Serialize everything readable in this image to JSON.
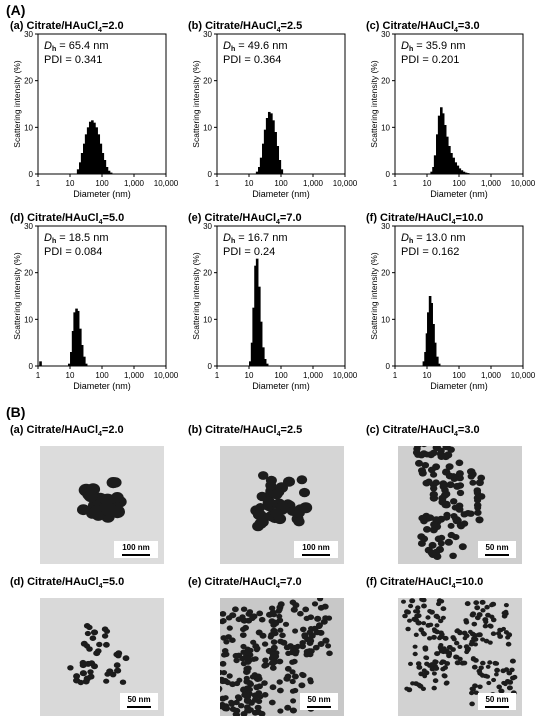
{
  "section_a": "(A)",
  "section_b": "(B)",
  "colors": {
    "bar": "#000000",
    "frame": "#000000",
    "tem_bg": "#d8d8d8",
    "tem_particle": "#1c1c1c"
  },
  "chart_data": [
    {
      "type": "bar",
      "title_prefix": "(a) Citrate/HAuCl",
      "title_sub": "4",
      "title_suffix": "=2.0",
      "dh_label": "D",
      "dh_sub": "h",
      "dh_text": " = 65.4 nm",
      "pdi_text": "PDI = 0.341",
      "xlabel": "Diameter (nm)",
      "ylabel": "Scattering intensity (%)",
      "xscale": "log",
      "xlim": [
        1,
        10000
      ],
      "ylim": [
        0,
        30
      ],
      "xticks": [
        "1",
        "10",
        "100",
        "1,000",
        "10,000"
      ],
      "yticks": [
        "0",
        "10",
        "20",
        "30"
      ],
      "x": [
        18,
        21,
        24,
        28,
        32,
        37,
        43,
        50,
        58,
        68,
        79,
        92,
        106,
        123,
        143,
        166,
        193
      ],
      "values": [
        1.0,
        2.5,
        4.5,
        6.5,
        8.5,
        10.0,
        11.2,
        11.5,
        11.0,
        10.0,
        8.5,
        6.5,
        4.5,
        3.0,
        1.5,
        0.7,
        0.3
      ]
    },
    {
      "type": "bar",
      "title_prefix": "(b) Citrate/HAuCl",
      "title_sub": "4",
      "title_suffix": "=2.5",
      "dh_label": "D",
      "dh_sub": "h",
      "dh_text": " = 49.6 nm",
      "pdi_text": "PDI = 0.364",
      "xlabel": "Diameter (nm)",
      "ylabel": "Scattering intensity (%)",
      "xscale": "log",
      "xlim": [
        1,
        10000
      ],
      "ylim": [
        0,
        30
      ],
      "xticks": [
        "1",
        "10",
        "100",
        "1,000",
        "10,000"
      ],
      "yticks": [
        "0",
        "10",
        "20",
        "30"
      ],
      "x": [
        18,
        21,
        24,
        28,
        32,
        37,
        43,
        50,
        58,
        68,
        79,
        92,
        106
      ],
      "values": [
        0.5,
        1.5,
        3.5,
        6.5,
        9.5,
        12.0,
        13.3,
        13.0,
        11.5,
        9.0,
        6.0,
        3.0,
        1.0
      ]
    },
    {
      "type": "bar",
      "title_prefix": "(c) Citrate/HAuCl",
      "title_sub": "4",
      "title_suffix": "=3.0",
      "dh_label": "D",
      "dh_sub": "h",
      "dh_text": " = 35.9 nm",
      "pdi_text": "PDI = 0.201",
      "xlabel": "Diameter (nm)",
      "ylabel": "Scattering intensity (%)",
      "xscale": "log",
      "xlim": [
        1,
        10000
      ],
      "ylim": [
        0,
        30
      ],
      "xticks": [
        "1",
        "10",
        "100",
        "1,000",
        "10,000"
      ],
      "yticks": [
        "0",
        "10",
        "20",
        "30"
      ],
      "x": [
        14,
        16,
        18,
        21,
        24,
        28,
        32,
        37,
        43,
        50,
        58,
        68,
        79,
        92,
        106,
        123,
        143,
        166,
        193,
        230
      ],
      "values": [
        0.5,
        1.5,
        4.0,
        8.5,
        12.5,
        14.3,
        13.0,
        10.5,
        8.0,
        6.0,
        4.5,
        3.5,
        2.5,
        1.8,
        1.2,
        0.8,
        0.5,
        0.3,
        0.2,
        0.1
      ]
    },
    {
      "type": "bar",
      "title_prefix": "(d) Citrate/HAuCl",
      "title_sub": "4",
      "title_suffix": "=5.0",
      "dh_label": "D",
      "dh_sub": "h",
      "dh_text": " = 18.5 nm",
      "pdi_text": "PDI = 0.084",
      "xlabel": "Diameter (nm)",
      "ylabel": "Scattering intensity (%)",
      "xscale": "log",
      "xlim": [
        1,
        10000
      ],
      "ylim": [
        0,
        30
      ],
      "xticks": [
        "1",
        "10",
        "100",
        "1,000",
        "10,000"
      ],
      "yticks": [
        "0",
        "10",
        "20",
        "30"
      ],
      "x": [
        1.2,
        9.5,
        11,
        12.5,
        14,
        16,
        18,
        21,
        24,
        28,
        32
      ],
      "values": [
        1.0,
        0.5,
        3.0,
        7.5,
        11.5,
        12.3,
        11.8,
        8.0,
        4.5,
        2.0,
        0.5
      ]
    },
    {
      "type": "bar",
      "title_prefix": "(e) Citrate/HAuCl",
      "title_sub": "4",
      "title_suffix": "=7.0",
      "dh_label": "D",
      "dh_sub": "h",
      "dh_text": " = 16.7 nm",
      "pdi_text": "PDI = 0.24",
      "xlabel": "Diameter (nm)",
      "ylabel": "Scattering intensity (%)",
      "xscale": "log",
      "xlim": [
        1,
        10000
      ],
      "ylim": [
        0,
        30
      ],
      "xticks": [
        "1",
        "10",
        "100",
        "1,000",
        "10,000"
      ],
      "yticks": [
        "0",
        "10",
        "20",
        "30"
      ],
      "x": [
        11,
        12.5,
        14,
        16,
        18,
        21,
        24,
        28,
        32,
        37
      ],
      "values": [
        1.0,
        5.0,
        12.5,
        21.5,
        23.0,
        17.0,
        9.5,
        4.0,
        1.5,
        0.5
      ]
    },
    {
      "type": "bar",
      "title_prefix": "(f) Citrate/HAuCl",
      "title_sub": "4",
      "title_suffix": "=10.0",
      "dh_label": "D",
      "dh_sub": "h",
      "dh_text": " = 13.0 nm",
      "pdi_text": "PDI = 0.162",
      "xlabel": "Diameter (nm)",
      "ylabel": "Scattering intensity (%)",
      "xscale": "log",
      "xlim": [
        1,
        10000
      ],
      "ylim": [
        0,
        30
      ],
      "xticks": [
        "1",
        "10",
        "100",
        "1,000",
        "10,000"
      ],
      "yticks": [
        "0",
        "10",
        "20",
        "30"
      ],
      "x": [
        8,
        9,
        10,
        11,
        12.5,
        14,
        16,
        18,
        21,
        24
      ],
      "values": [
        1.0,
        3.0,
        7.0,
        11.5,
        15.0,
        13.5,
        9.0,
        5.0,
        2.0,
        0.5
      ]
    }
  ],
  "tem": [
    {
      "title_prefix": "(a) Citrate/HAuCl",
      "title_sub": "4",
      "title_suffix": "=2.0",
      "scale": "100 nm"
    },
    {
      "title_prefix": "(b) Citrate/HAuCl",
      "title_sub": "4",
      "title_suffix": "=2.5",
      "scale": "100 nm"
    },
    {
      "title_prefix": "(c) Citrate/HAuCl",
      "title_sub": "4",
      "title_suffix": "=3.0",
      "scale": "50 nm"
    },
    {
      "title_prefix": "(d) Citrate/HAuCl",
      "title_sub": "4",
      "title_suffix": "=5.0",
      "scale": "50 nm"
    },
    {
      "title_prefix": "(e) Citrate/HAuCl",
      "title_sub": "4",
      "title_suffix": "=7.0",
      "scale": "50 nm"
    },
    {
      "title_prefix": "(f) Citrate/HAuCl",
      "title_sub": "4",
      "title_suffix": "=10.0",
      "scale": "50 nm"
    }
  ]
}
